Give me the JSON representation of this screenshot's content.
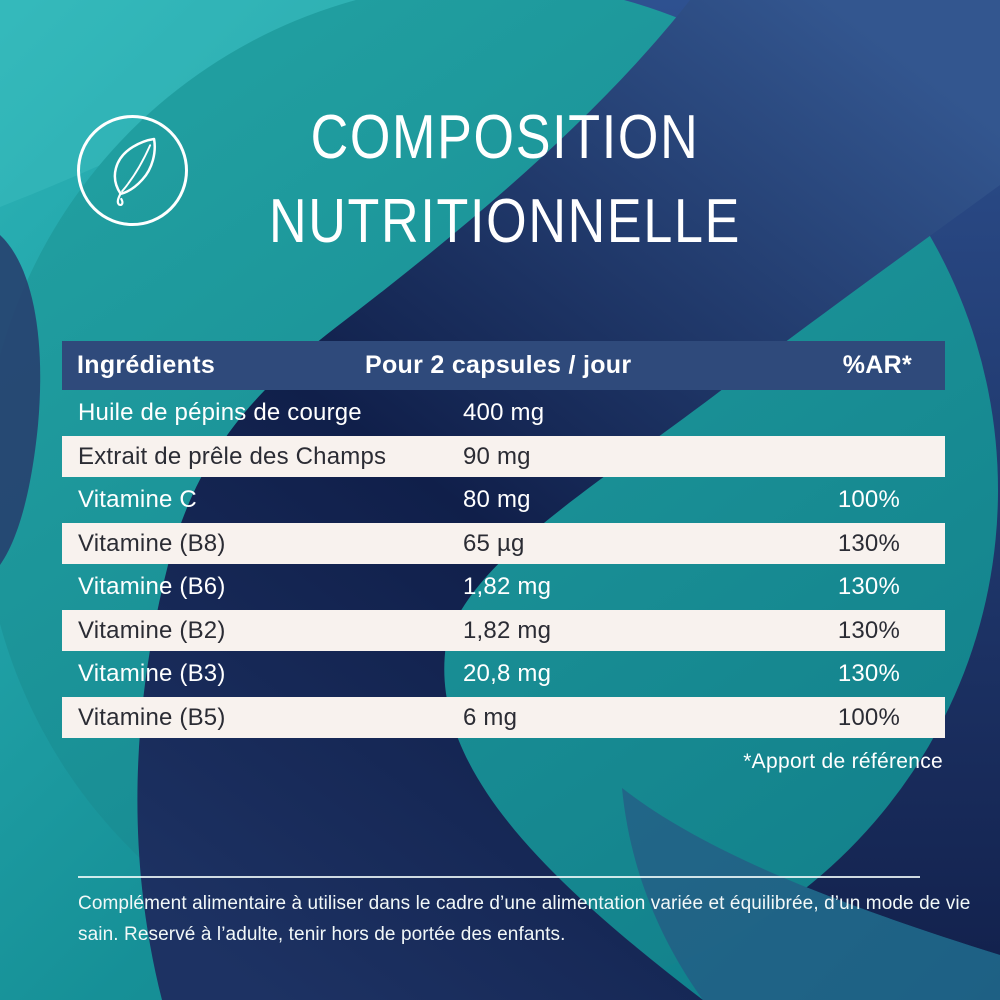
{
  "badge": {
    "icon": "leaf-icon"
  },
  "title": {
    "line1": "COMPOSITION",
    "line2": "NUTRITIONNELLE"
  },
  "table": {
    "headers": {
      "ingredient": "Ingrédients",
      "amount": "Pour 2 capsules / jour",
      "ar": "%AR*"
    },
    "rows": [
      {
        "ingredient": "Huile de pépins de courge",
        "amount": "400 mg",
        "ar": ""
      },
      {
        "ingredient": "Extrait de prêle des Champs",
        "amount": "90 mg",
        "ar": ""
      },
      {
        "ingredient": "Vitamine C",
        "amount": "80 mg",
        "ar": "100%"
      },
      {
        "ingredient": "Vitamine (B8)",
        "amount": "65 µg",
        "ar": "130%"
      },
      {
        "ingredient": "Vitamine (B6)",
        "amount": "1,82 mg",
        "ar": "130%"
      },
      {
        "ingredient": "Vitamine (B2)",
        "amount": "1,82 mg",
        "ar": "130%"
      },
      {
        "ingredient": "Vitamine (B3)",
        "amount": "20,8 mg",
        "ar": "130%"
      },
      {
        "ingredient": "Vitamine (B5)",
        "amount": "6 mg",
        "ar": "100%"
      }
    ],
    "footnote": "*Apport de référence"
  },
  "footer": {
    "text": "Complément alimentaire à utiliser dans le cadre d’une alimentation variée et équilibrée, d’un mode de vie sain. Reservé à l’adulte, tenir hors de portée des enfants."
  },
  "colors": {
    "header_navy": "#2f4a7b",
    "swoosh_dark": "#101f4a",
    "swoosh_light": "#33568f",
    "teal_light": "#29b2b5",
    "teal_deep": "#0f7e8a",
    "circle_teal": "#1f9c9c",
    "row_offwhite": "#f8f2ee",
    "row_dark_text": "#2b2c34",
    "text_white": "#ffffff"
  }
}
